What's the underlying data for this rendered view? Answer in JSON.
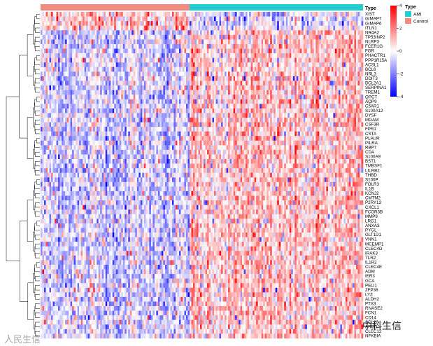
{
  "chart_data": {
    "type": "heatmap",
    "annotation": {
      "title": "Type",
      "groups": [
        {
          "name": "Control",
          "color": "#F08A80",
          "n": 85
        },
        {
          "name": "AMI",
          "color": "#22CED1",
          "n": 99
        }
      ]
    },
    "rows": [
      "XIST",
      "GIMAP7",
      "GIMAP6",
      "ITLN1",
      "NR4A2",
      "TP53INP2",
      "NLRP3",
      "FCER1G",
      "FGR",
      "PHACTR1",
      "PPP1R15A",
      "ACSL1",
      "BCL6",
      "NRL3",
      "DDIT3",
      "BCL2A1",
      "SERPINA1",
      "TREM1",
      "QPCT",
      "AQP9",
      "C5AR1",
      "S100A12",
      "DYSF",
      "MGAM",
      "CSF3R",
      "FPR1",
      "CSTA",
      "PLAUR",
      "PILRA",
      "RBP7",
      "CDA",
      "S100A9",
      "BST1",
      "TMBSF1",
      "LILRB2",
      "THBD",
      "S100P",
      "FOLR3",
      "IL1B",
      "KCNJ2",
      "CMTM2",
      "P2RY13",
      "CXCL1",
      "FCGR3B",
      "MMP9",
      "LRG1",
      "ANXA3",
      "PYGL",
      "GLT1D1",
      "VNN1",
      "MCEMP1",
      "CLEC4D",
      "IRAK3",
      "TLR2",
      "IL1R2",
      "CLEC4E",
      "ADM",
      "IER3",
      "GCA",
      "PELI1",
      "ZFP36",
      "LYZ",
      "ALDH2",
      "PTX3",
      "RNASE2",
      "FCN1",
      "CD14",
      "SCL20",
      "AREG",
      "CLEC12",
      "NFKBIA"
    ],
    "color_scale": {
      "min": -4,
      "mid": 0,
      "max": 4,
      "ticks": [
        4,
        2,
        0,
        -2,
        -4
      ],
      "colors": [
        "#0000FF",
        "#FFFFFF",
        "#FF0000"
      ]
    },
    "legend": {
      "labels": [
        "AMI",
        "Control"
      ],
      "colors": [
        "#22CED1",
        "#F08A80"
      ]
    },
    "values_note": "",
    "grid": false,
    "legend_placement": "right"
  },
  "colors": {
    "control": "#F08A80",
    "ami": "#22CED1",
    "low": "#0000FF",
    "mid": "#FFFFFF",
    "high": "#FF0000"
  },
  "watermark": {
    "left": "人民生信",
    "right": "中科生信"
  }
}
